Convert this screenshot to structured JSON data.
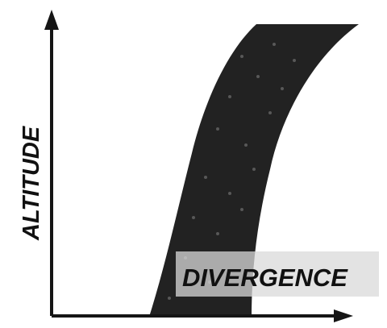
{
  "diagram": {
    "y_axis_label": "ALTITUDE",
    "band_label": "DIVERGENCE",
    "colors": {
      "ink": "#151515",
      "band": "#222222",
      "label_backdrop": "#d9d9d9",
      "background": "#ffffff"
    }
  }
}
